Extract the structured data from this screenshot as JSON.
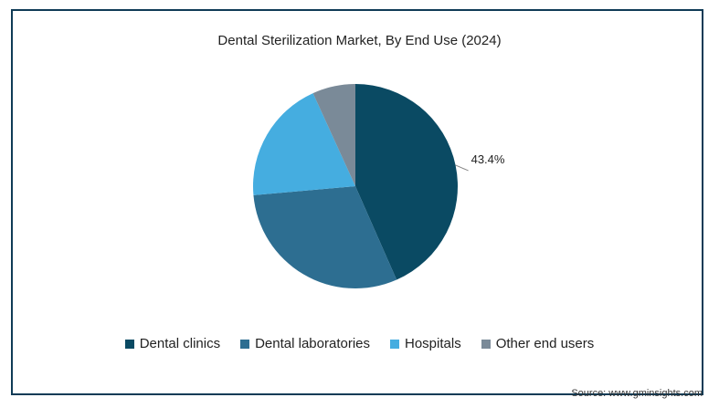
{
  "chart_data": {
    "type": "pie",
    "title": "Dental Sterilization Market, By End Use (2024)",
    "slices": [
      {
        "name": "Dental clinics",
        "value": 43.4,
        "color": "#0a4a63",
        "label": "43.4%"
      },
      {
        "name": "Dental laboratories",
        "value": 30.2,
        "color": "#2d6e91"
      },
      {
        "name": "Hospitals",
        "value": 19.6,
        "color": "#45ade0"
      },
      {
        "name": "Other end users",
        "value": 6.8,
        "color": "#7a8a98"
      }
    ]
  },
  "legend": {
    "items": [
      "Dental clinics",
      "Dental laboratories",
      "Hospitals",
      "Other end users"
    ]
  },
  "source": "Source: www.gminsights.com"
}
